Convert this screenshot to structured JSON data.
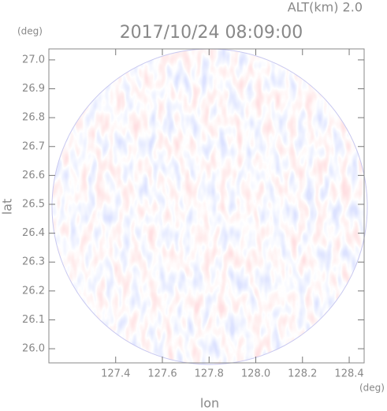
{
  "chart_data": {
    "type": "radar-field",
    "title": "2017/10/24 08:09:00",
    "subtitle": "ALT(km) 2.0",
    "x_label": "lon",
    "y_label": "lat",
    "x_unit": "(deg)",
    "y_unit": "(deg)",
    "xlim": [
      127.114,
      128.464
    ],
    "ylim": [
      25.951,
      27.038
    ],
    "xticks": [
      127.4,
      127.6,
      127.8,
      {
        "value": 128.0,
        "label": "128.0"
      },
      128.2,
      128.4
    ],
    "yticks": [
      {
        "value": 26.0,
        "label": "26.0"
      },
      26.1,
      26.2,
      26.3,
      26.4,
      26.5,
      26.6,
      26.7,
      26.8,
      26.9,
      {
        "value": 27.0,
        "label": "27.0"
      }
    ]
  }
}
